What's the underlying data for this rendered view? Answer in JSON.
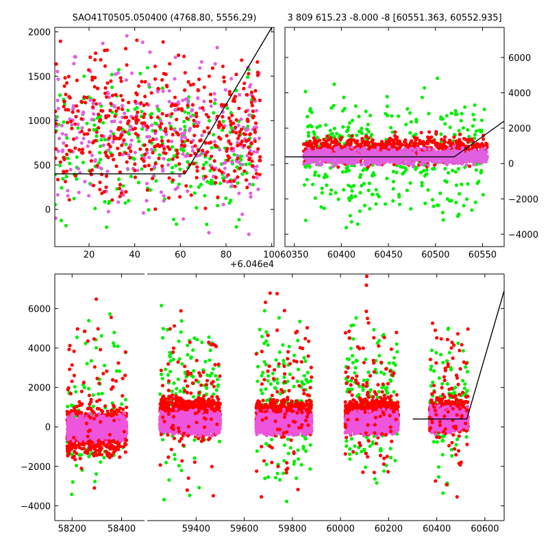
{
  "chart_data": [
    {
      "type": "scatter",
      "title": "SAO41T0505.050400 (4768.80, 5556.29)",
      "xlim": [
        5,
        101
      ],
      "ylim": [
        -420,
        2050
      ],
      "x_offset_label": "+6.046e4",
      "x_ticks": [
        20,
        40,
        60,
        80,
        100
      ],
      "x_tick_labels": [
        "20",
        "40",
        "60",
        "80",
        "100"
      ],
      "y_ticks": [
        0,
        500,
        1000,
        1500,
        2000
      ],
      "y_tick_labels": [
        "0",
        "500",
        "1000",
        "1500",
        "2000"
      ],
      "series": [
        {
          "color": "#00ee00",
          "clusters": [
            {
              "x": [
                5,
                92
              ],
              "y": [
                -420,
                1800
              ],
              "n": 250
            }
          ]
        },
        {
          "color": "#e060e0",
          "clusters": [
            {
              "x": [
                5,
                95
              ],
              "y": [
                -420,
                2050
              ],
              "n": 300
            }
          ]
        },
        {
          "color": "#ff0000",
          "clusters": [
            {
              "x": [
                5,
                95
              ],
              "y": [
                -200,
                2050
              ],
              "n": 450
            }
          ]
        }
      ],
      "model_line": {
        "x": [
          5,
          62,
          100
        ],
        "y": [
          400,
          400,
          2050
        ],
        "color": "#000000"
      },
      "legend": "none",
      "grid": false
    },
    {
      "type": "scatter",
      "title": "3 809 615.23 -8.000 -8 [60551.363, 60552.935]",
      "xlim": [
        60340,
        60573
      ],
      "ylim": [
        -4700,
        7700
      ],
      "x_ticks": [
        60350,
        60400,
        60450,
        60500,
        60550
      ],
      "x_tick_labels": [
        "60350",
        "60400",
        "60450",
        "60500",
        "60550"
      ],
      "y_ticks": [
        -4000,
        -2000,
        0,
        2000,
        4000,
        6000
      ],
      "y_tick_labels": [
        "−4000",
        "−2000",
        "0",
        "2000",
        "4000",
        "6000"
      ],
      "y_axis_side": "right",
      "series": [
        {
          "color": "#00ee00",
          "clusters": [
            {
              "x": [
                60360,
                60555
              ],
              "y": [
                -4000,
                5000
              ],
              "n": 400
            }
          ]
        },
        {
          "color": "#ff0000",
          "clusters": [
            {
              "x": [
                60360,
                60555
              ],
              "y": [
                -300,
                1800
              ],
              "n": 900
            }
          ]
        },
        {
          "color": "#e060e0",
          "clusters": [
            {
              "x": [
                60360,
                60555
              ],
              "y": [
                -200,
                1000
              ],
              "n": 1100
            }
          ]
        }
      ],
      "model_line": {
        "x": [
          60340,
          60520,
          60573
        ],
        "y": [
          380,
          380,
          2400
        ],
        "color": "#000000"
      },
      "legend": "none",
      "grid": false
    },
    {
      "type": "scatter",
      "xlim": [
        58130,
        60680
      ],
      "ylim": [
        -4750,
        7750
      ],
      "x_ticks": [
        58200,
        58400,
        59400,
        59600,
        59800,
        60000,
        60200,
        60400,
        60600
      ],
      "x_tick_labels": [
        "58200",
        "58400",
        "59400",
        "59600",
        "59800",
        "60000",
        "60200",
        "60400",
        "60600"
      ],
      "y_ticks": [
        -4000,
        -2000,
        0,
        2000,
        4000,
        6000
      ],
      "y_tick_labels": [
        "−4000",
        "−2000",
        "0",
        "2000",
        "4000",
        "6000"
      ],
      "axis_break": {
        "after": 58490,
        "before": 59200
      },
      "series": [
        {
          "color": "#00ee00",
          "clusters": [
            {
              "x": [
                58180,
                58420
              ],
              "y": [
                -4500,
                7000
              ],
              "n": 100
            },
            {
              "x": [
                59250,
                59500
              ],
              "y": [
                -4500,
                7000
              ],
              "n": 150
            },
            {
              "x": [
                59650,
                59880
              ],
              "y": [
                -4500,
                7000
              ],
              "n": 150
            },
            {
              "x": [
                60020,
                60240
              ],
              "y": [
                -4500,
                7000
              ],
              "n": 150
            },
            {
              "x": [
                60370,
                60530
              ],
              "y": [
                -4000,
                6000
              ],
              "n": 100
            }
          ]
        },
        {
          "color": "#ff0000",
          "clusters": [
            {
              "x": [
                58180,
                58420
              ],
              "y": [
                -1800,
                1400
              ],
              "n": 900
            },
            {
              "x": [
                59250,
                59500
              ],
              "y": [
                -600,
                1800
              ],
              "n": 1000
            },
            {
              "x": [
                59650,
                59880
              ],
              "y": [
                -600,
                1600
              ],
              "n": 1000
            },
            {
              "x": [
                60020,
                60240
              ],
              "y": [
                -600,
                1700
              ],
              "n": 1000
            },
            {
              "x": [
                60370,
                60530
              ],
              "y": [
                -600,
                1800
              ],
              "n": 600
            }
          ]
        },
        {
          "color": "#ee55dd",
          "clusters": [
            {
              "x": [
                58180,
                58420
              ],
              "y": [
                -800,
                700
              ],
              "n": 1200
            },
            {
              "x": [
                59250,
                59500
              ],
              "y": [
                -500,
                900
              ],
              "n": 1300
            },
            {
              "x": [
                59650,
                59880
              ],
              "y": [
                -500,
                900
              ],
              "n": 1300
            },
            {
              "x": [
                60020,
                60240
              ],
              "y": [
                -500,
                900
              ],
              "n": 1300
            },
            {
              "x": [
                60370,
                60530
              ],
              "y": [
                -400,
                1200
              ],
              "n": 800
            }
          ]
        },
        {
          "color": "#ff0000",
          "clusters": [
            {
              "x": [
                58180,
                58420
              ],
              "y": [
                -4500,
                7700
              ],
              "n": 60
            },
            {
              "x": [
                59250,
                59500
              ],
              "y": [
                -4500,
                7700
              ],
              "n": 100
            },
            {
              "x": [
                59650,
                59880
              ],
              "y": [
                -4500,
                7700
              ],
              "n": 100
            },
            {
              "x": [
                60020,
                60240
              ],
              "y": [
                -4500,
                7700
              ],
              "n": 100
            },
            {
              "x": [
                60370,
                60530
              ],
              "y": [
                -4500,
                7700
              ],
              "n": 80
            }
          ]
        }
      ],
      "model_line": {
        "x": [
          60300,
          60525,
          60680
        ],
        "y": [
          400,
          400,
          6900
        ],
        "color": "#000000"
      },
      "legend": "none",
      "grid": false
    }
  ]
}
